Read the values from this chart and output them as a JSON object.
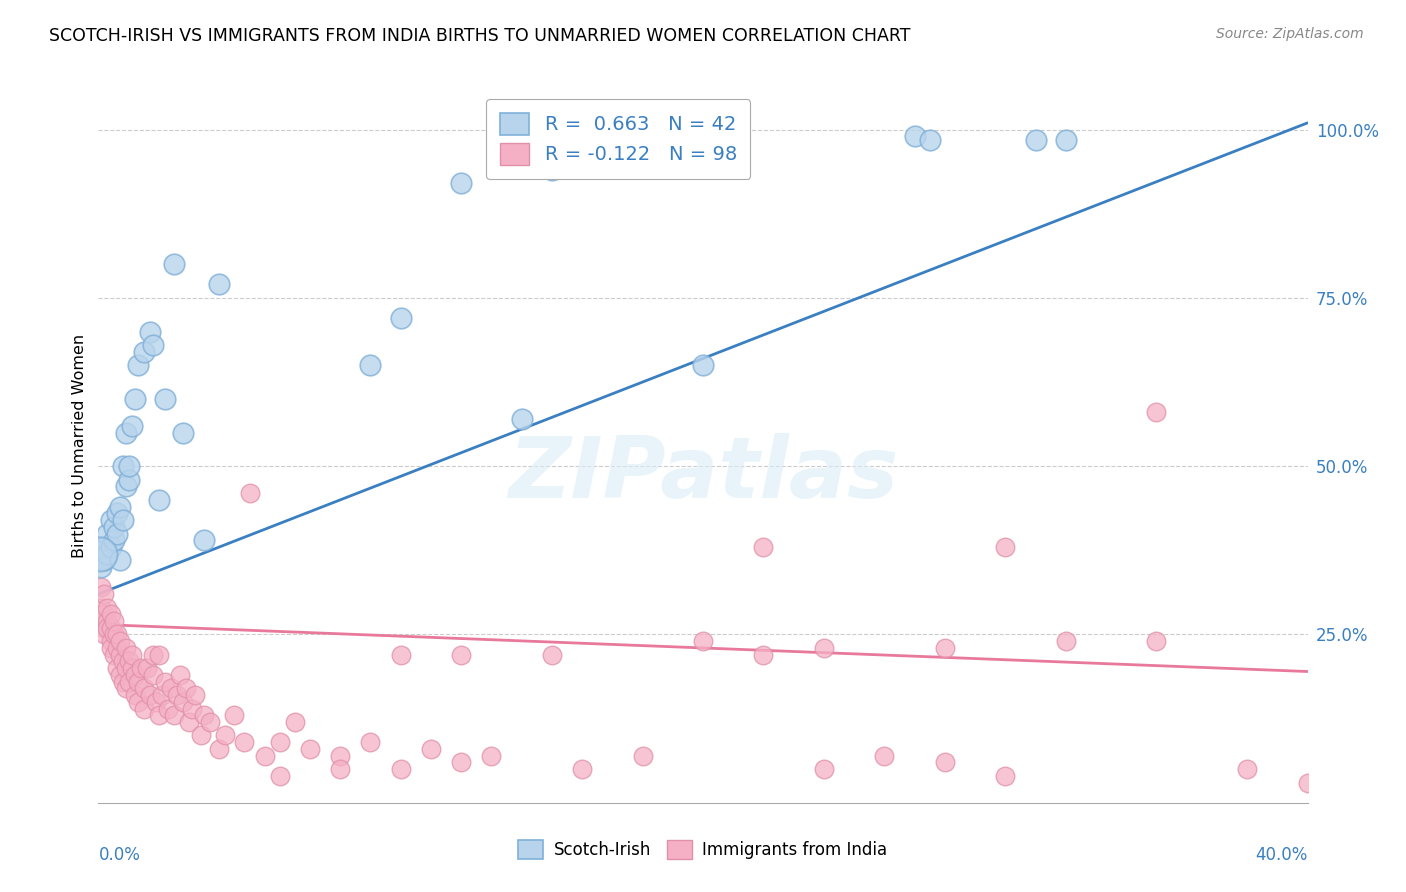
{
  "title": "SCOTCH-IRISH VS IMMIGRANTS FROM INDIA BIRTHS TO UNMARRIED WOMEN CORRELATION CHART",
  "source": "Source: ZipAtlas.com",
  "ylabel": "Births to Unmarried Women",
  "xlim": [
    0.0,
    0.4
  ],
  "ylim": [
    0.0,
    1.06
  ],
  "y_ticks": [
    0.25,
    0.5,
    0.75,
    1.0
  ],
  "y_tick_labels": [
    "25.0%",
    "50.0%",
    "75.0%",
    "100.0%"
  ],
  "legend_blue_label": "R =  0.663   N = 42",
  "legend_pink_label": "R = -0.122   N = 98",
  "watermark": "ZIPatlas",
  "si_color": "#b8d4ec",
  "ind_color": "#f5b0c5",
  "blue_line_color": "#3a7fc1",
  "pink_line_color": "#e8799a",
  "blue_edge": "#80b0d8",
  "pink_edge": "#e090a8",
  "si_x": [
    0.001,
    0.001,
    0.002,
    0.002,
    0.003,
    0.003,
    0.004,
    0.004,
    0.005,
    0.005,
    0.006,
    0.006,
    0.007,
    0.007,
    0.008,
    0.008,
    0.009,
    0.009,
    0.01,
    0.01,
    0.011,
    0.012,
    0.013,
    0.015,
    0.017,
    0.018,
    0.02,
    0.022,
    0.025,
    0.028,
    0.035,
    0.04,
    0.09,
    0.1,
    0.12,
    0.14,
    0.15,
    0.2,
    0.27,
    0.275,
    0.31,
    0.32
  ],
  "si_y": [
    0.35,
    0.38,
    0.36,
    0.38,
    0.37,
    0.4,
    0.38,
    0.42,
    0.39,
    0.41,
    0.4,
    0.43,
    0.36,
    0.44,
    0.42,
    0.5,
    0.47,
    0.55,
    0.48,
    0.5,
    0.56,
    0.6,
    0.65,
    0.67,
    0.7,
    0.68,
    0.45,
    0.6,
    0.8,
    0.55,
    0.39,
    0.77,
    0.65,
    0.72,
    0.92,
    0.57,
    0.94,
    0.65,
    0.99,
    0.985,
    0.985,
    0.985
  ],
  "ind_x": [
    0.001,
    0.001,
    0.001,
    0.002,
    0.002,
    0.002,
    0.002,
    0.003,
    0.003,
    0.003,
    0.004,
    0.004,
    0.004,
    0.004,
    0.005,
    0.005,
    0.005,
    0.006,
    0.006,
    0.006,
    0.007,
    0.007,
    0.007,
    0.008,
    0.008,
    0.009,
    0.009,
    0.009,
    0.01,
    0.01,
    0.011,
    0.011,
    0.012,
    0.012,
    0.013,
    0.013,
    0.014,
    0.015,
    0.015,
    0.016,
    0.017,
    0.018,
    0.018,
    0.019,
    0.02,
    0.02,
    0.021,
    0.022,
    0.023,
    0.024,
    0.025,
    0.026,
    0.027,
    0.028,
    0.029,
    0.03,
    0.031,
    0.032,
    0.034,
    0.035,
    0.037,
    0.04,
    0.042,
    0.045,
    0.048,
    0.05,
    0.055,
    0.06,
    0.065,
    0.07,
    0.08,
    0.09,
    0.1,
    0.11,
    0.12,
    0.13,
    0.15,
    0.16,
    0.18,
    0.2,
    0.22,
    0.24,
    0.26,
    0.28,
    0.3,
    0.32,
    0.35,
    0.38,
    0.4,
    0.22,
    0.24,
    0.28,
    0.3,
    0.1,
    0.12,
    0.08,
    0.06,
    0.35
  ],
  "ind_y": [
    0.32,
    0.29,
    0.27,
    0.26,
    0.28,
    0.31,
    0.25,
    0.27,
    0.29,
    0.26,
    0.24,
    0.26,
    0.28,
    0.23,
    0.22,
    0.25,
    0.27,
    0.2,
    0.23,
    0.25,
    0.19,
    0.22,
    0.24,
    0.18,
    0.21,
    0.17,
    0.2,
    0.23,
    0.18,
    0.21,
    0.2,
    0.22,
    0.16,
    0.19,
    0.15,
    0.18,
    0.2,
    0.14,
    0.17,
    0.2,
    0.16,
    0.19,
    0.22,
    0.15,
    0.22,
    0.13,
    0.16,
    0.18,
    0.14,
    0.17,
    0.13,
    0.16,
    0.19,
    0.15,
    0.17,
    0.12,
    0.14,
    0.16,
    0.1,
    0.13,
    0.12,
    0.08,
    0.1,
    0.13,
    0.09,
    0.46,
    0.07,
    0.09,
    0.12,
    0.08,
    0.07,
    0.09,
    0.05,
    0.08,
    0.06,
    0.07,
    0.22,
    0.05,
    0.07,
    0.24,
    0.22,
    0.05,
    0.07,
    0.06,
    0.04,
    0.24,
    0.58,
    0.05,
    0.03,
    0.38,
    0.23,
    0.23,
    0.38,
    0.22,
    0.22,
    0.05,
    0.04,
    0.24
  ],
  "blue_line_x": [
    0.0,
    0.4
  ],
  "blue_line_y": [
    0.31,
    1.01
  ],
  "pink_line_x": [
    0.0,
    0.4
  ],
  "pink_line_y": [
    0.265,
    0.195
  ]
}
